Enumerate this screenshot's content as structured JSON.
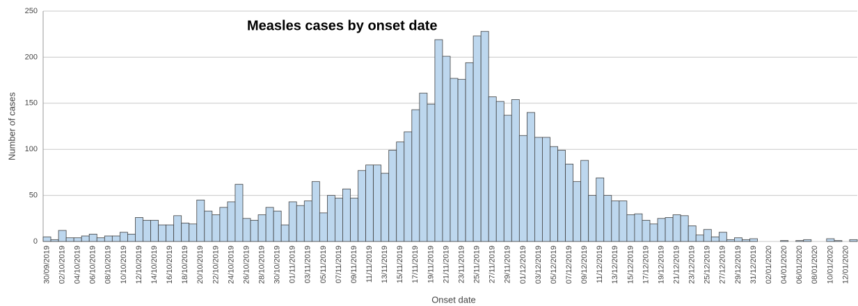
{
  "chart_data": {
    "type": "bar",
    "title": "Measles cases by onset date",
    "x_label": "Onset date",
    "y_label": "Number of cases",
    "categories": [
      "30/09/2019",
      null,
      "02/10/2019",
      null,
      "04/10/2019",
      null,
      "06/10/2019",
      null,
      "08/10/2019",
      null,
      "10/10/2019",
      null,
      "12/10/2019",
      null,
      "14/10/2019",
      null,
      "16/10/2019",
      null,
      "18/10/2019",
      null,
      "20/10/2019",
      null,
      "22/10/2019",
      null,
      "24/10/2019",
      null,
      "26/10/2019",
      null,
      "28/10/2019",
      null,
      "30/10/2019",
      null,
      "01/11/2019",
      null,
      "03/11/2019",
      null,
      "05/11/2019",
      null,
      "07/11/2019",
      null,
      "09/11/2019",
      null,
      "11/11/2019",
      null,
      "13/11/2019",
      null,
      "15/11/2019",
      null,
      "17/11/2019",
      null,
      "19/11/2019",
      null,
      "21/11/2019",
      null,
      "23/11/2019",
      null,
      "25/11/2019",
      null,
      "27/11/2019",
      null,
      "29/11/2019",
      null,
      "01/12/2019",
      null,
      "03/12/2019",
      null,
      "05/12/2019",
      null,
      "07/12/2019",
      null,
      "09/12/2019",
      null,
      "11/12/2019",
      null,
      "13/12/2019",
      null,
      "15/12/2019",
      null,
      "17/12/2019",
      null,
      "19/12/2019",
      null,
      "21/12/2019",
      null,
      "23/12/2019",
      null,
      "25/12/2019",
      null,
      "27/12/2019",
      null,
      "29/12/2019",
      null,
      "31/12/2019",
      null,
      "02/01/2020",
      null,
      "04/01/2020",
      null,
      "06/01/2020",
      null,
      "08/01/2020",
      null,
      "10/01/2020",
      null,
      "12/01/2020",
      null
    ],
    "values": [
      5,
      2,
      12,
      4,
      4,
      6,
      8,
      4,
      6,
      6,
      10,
      8,
      26,
      23,
      23,
      18,
      18,
      28,
      20,
      19,
      45,
      33,
      29,
      37,
      43,
      62,
      25,
      23,
      29,
      37,
      33,
      18,
      43,
      39,
      44,
      65,
      31,
      50,
      47,
      57,
      47,
      77,
      83,
      83,
      74,
      99,
      108,
      119,
      143,
      161,
      149,
      219,
      201,
      177,
      176,
      194,
      223,
      228,
      157,
      152,
      137,
      154,
      115,
      140,
      113,
      113,
      103,
      99,
      84,
      65,
      88,
      50,
      69,
      50,
      44,
      44,
      29,
      30,
      23,
      19,
      25,
      26,
      29,
      28,
      17,
      7,
      13,
      5,
      10,
      2,
      4,
      2,
      3,
      0,
      0,
      0,
      1,
      0,
      1,
      2,
      0,
      0,
      3,
      1,
      0,
      2
    ],
    "color": "#bdd7ee",
    "edge_color": "#404040",
    "ylim": [
      0,
      250
    ],
    "yticks": [
      0,
      50,
      100,
      150,
      200,
      250
    ],
    "grid": true
  }
}
